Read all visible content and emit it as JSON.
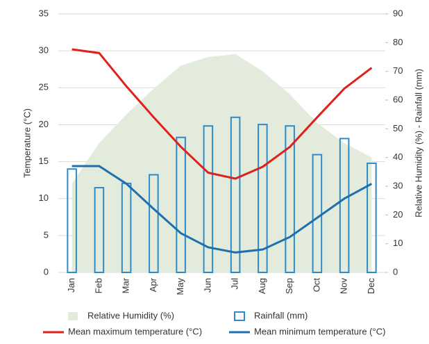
{
  "chart_data": {
    "type": "combo",
    "y_label": "Temperature (°C)",
    "y2_label": "Relative Humidity (%) - Rainfall (mm)",
    "categories": [
      "Jan",
      "Feb",
      "Mar",
      "Apr",
      "May",
      "Jun",
      "Jul",
      "Aug",
      "Sep",
      "Oct",
      "Nov",
      "Dec"
    ],
    "ylim": [
      0,
      35
    ],
    "yticks": [
      0,
      5,
      10,
      15,
      20,
      25,
      30,
      35
    ],
    "y2lim": [
      0,
      90
    ],
    "y2ticks": [
      0,
      10,
      20,
      30,
      40,
      50,
      60,
      70,
      80,
      90
    ],
    "grid": true,
    "series": [
      {
        "name": "Relative Humidity (%)",
        "kind": "area",
        "axis": "y2",
        "color": "#e2ebdc",
        "values": [
          31,
          45,
          55,
          64,
          72,
          75,
          76,
          70,
          62,
          52,
          45,
          40
        ]
      },
      {
        "name": "Rainfall (mm)",
        "kind": "bar",
        "axis": "y2",
        "color": "#2e8bc9",
        "values": [
          36,
          29.5,
          31,
          34,
          47,
          51,
          54,
          51.5,
          51,
          41,
          46.6,
          38
        ]
      },
      {
        "name": "Mean maximum temperature (°C)",
        "kind": "line",
        "color": "#e0201b",
        "values": [
          30.2,
          29.7,
          25.2,
          21,
          17,
          13.5,
          12.7,
          14.3,
          17,
          21,
          24.9,
          27.7
        ]
      },
      {
        "name": "Mean minimum temperature (°C)",
        "kind": "line",
        "color": "#1f6fae",
        "values": [
          14.4,
          14.4,
          12,
          8.6,
          5.3,
          3.4,
          2.7,
          3.1,
          4.8,
          7.4,
          10,
          12
        ]
      }
    ]
  }
}
